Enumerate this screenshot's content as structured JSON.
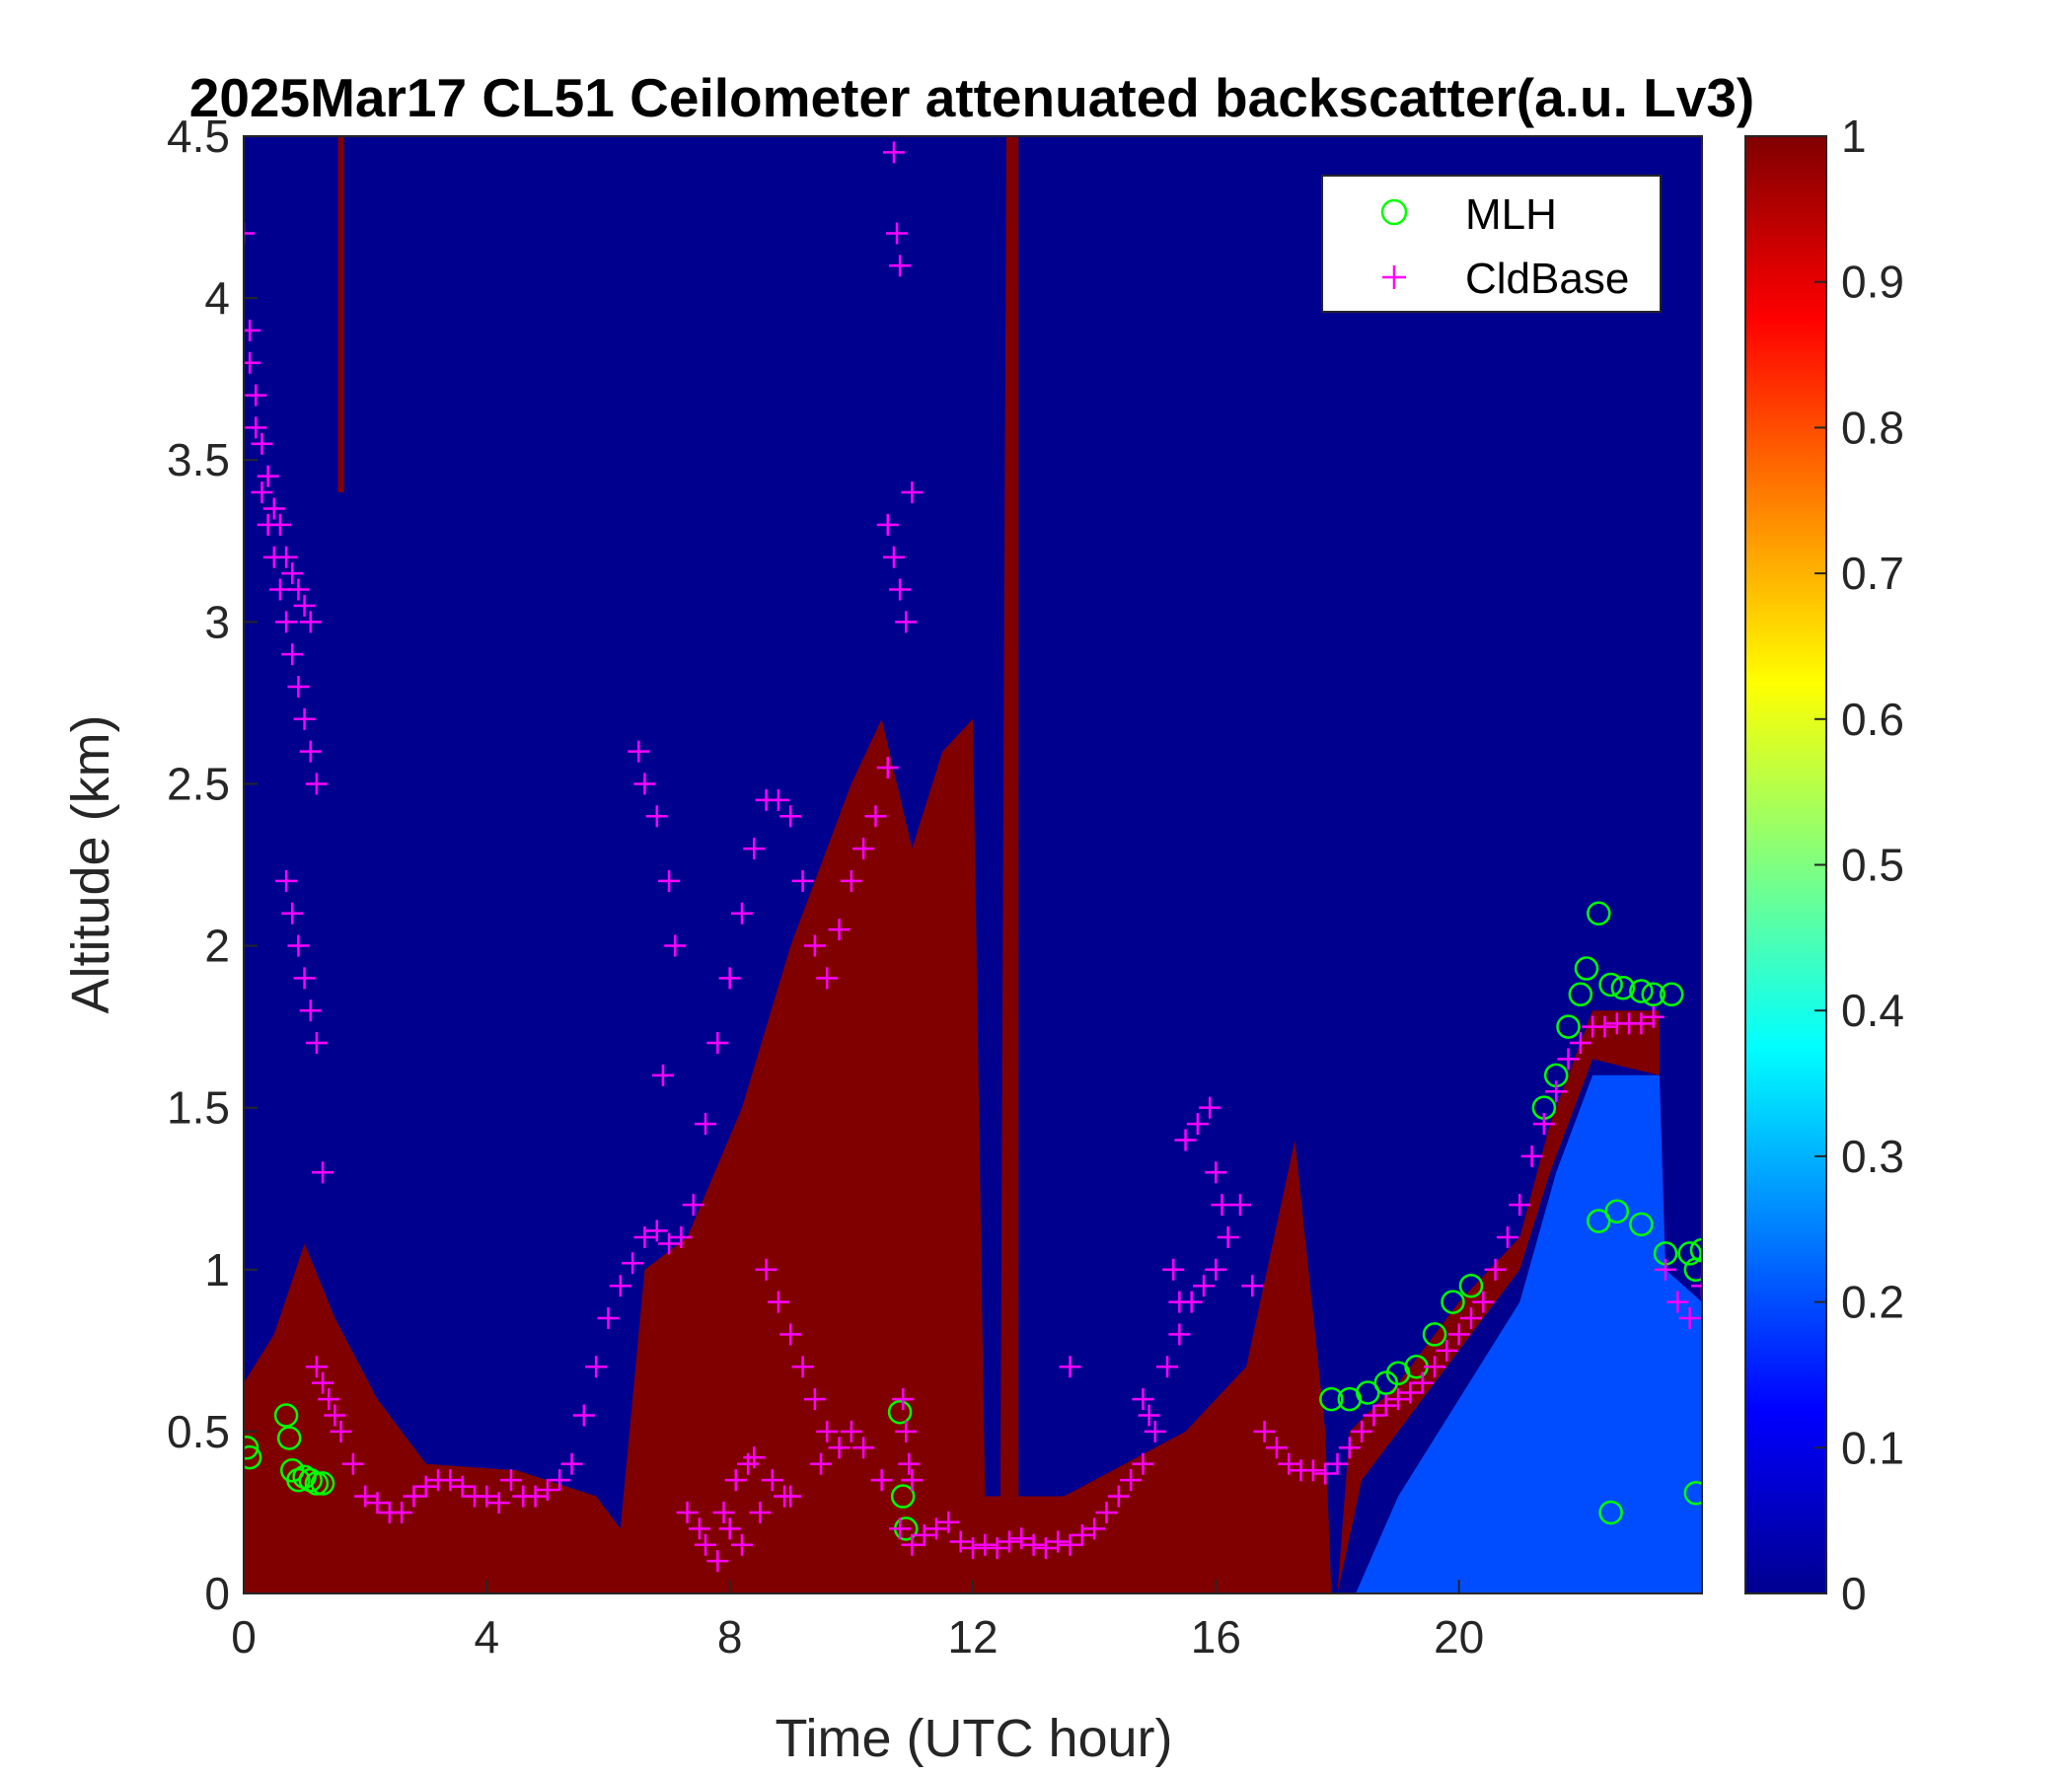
{
  "chart_data": {
    "type": "heatmap",
    "title": "2025Mar17 CL51 Ceilometer attenuated backscatter(a.u. Lv3)",
    "xlabel": "Time (UTC hour)",
    "ylabel": "Altitude (km)",
    "xlim": [
      0,
      24
    ],
    "ylim": [
      0,
      4.5
    ],
    "x_ticks": [
      "0",
      "4",
      "8",
      "12",
      "16",
      "20"
    ],
    "y_ticks": [
      "0",
      "0.5",
      "1",
      "1.5",
      "2",
      "2.5",
      "3",
      "3.5",
      "4",
      "4.5"
    ],
    "colorbar": {
      "colormap": "jet",
      "range": [
        0,
        1
      ],
      "ticks": [
        "0",
        "0.1",
        "0.2",
        "0.3",
        "0.4",
        "0.5",
        "0.6",
        "0.7",
        "0.8",
        "0.9",
        "1"
      ]
    },
    "legend": {
      "location": "top-right",
      "entries": [
        {
          "label": "MLH",
          "marker": "circle",
          "color": "#00ff00"
        },
        {
          "label": "CldBase",
          "marker": "plus",
          "color": "#ff00ff"
        }
      ]
    },
    "colors": {
      "background": "#00008f",
      "saturated": "#800000",
      "mlh_marker": "#00ff00",
      "cloud_marker": "#ff00ff"
    },
    "regions": [
      {
        "kind": "dense_aerosol_layer",
        "value": 1.0,
        "points": [
          [
            0,
            0
          ],
          [
            0,
            0.65
          ],
          [
            0.5,
            0.8
          ],
          [
            1.0,
            1.08
          ],
          [
            1.5,
            0.85
          ],
          [
            2.2,
            0.6
          ],
          [
            3,
            0.4
          ],
          [
            4.5,
            0.38
          ],
          [
            5.8,
            0.3
          ],
          [
            6.2,
            0.2
          ],
          [
            6.6,
            1.0
          ],
          [
            7.3,
            1.1
          ],
          [
            8.2,
            1.5
          ],
          [
            9.0,
            2.0
          ],
          [
            10.0,
            2.5
          ],
          [
            10.5,
            2.7
          ],
          [
            11.0,
            2.3
          ],
          [
            11.5,
            2.6
          ],
          [
            12.0,
            2.7
          ],
          [
            12.2,
            0.3
          ],
          [
            13.5,
            0.3
          ],
          [
            14.5,
            0.4
          ],
          [
            15.5,
            0.5
          ],
          [
            16.5,
            0.7
          ],
          [
            17.3,
            1.4
          ],
          [
            17.8,
            0.5
          ],
          [
            17.9,
            0
          ]
        ]
      },
      {
        "kind": "cloud_streak",
        "value": 1.0,
        "points": [
          [
            12.45,
            0.2
          ],
          [
            12.55,
            4.5
          ],
          [
            12.75,
            4.5
          ],
          [
            12.75,
            0.3
          ]
        ]
      },
      {
        "kind": "cloud_streak",
        "value": 1.0,
        "points": [
          [
            1.55,
            3.4
          ],
          [
            1.55,
            4.5
          ],
          [
            1.65,
            4.5
          ],
          [
            1.65,
            3.4
          ]
        ]
      },
      {
        "kind": "upper_aerosol_ramp",
        "value": 1.0,
        "points": [
          [
            18.2,
            0.5
          ],
          [
            19,
            0.65
          ],
          [
            20,
            0.9
          ],
          [
            21,
            1.1
          ],
          [
            21.5,
            1.45
          ],
          [
            22.2,
            1.8
          ],
          [
            23.3,
            1.8
          ],
          [
            23.3,
            1.6
          ],
          [
            22.2,
            1.65
          ],
          [
            21.5,
            1.3
          ],
          [
            21,
            1.0
          ],
          [
            20,
            0.75
          ],
          [
            19,
            0.5
          ],
          [
            18.4,
            0.35
          ],
          [
            18.0,
            0
          ]
        ]
      },
      {
        "kind": "clean_boundary_layer",
        "value": 0.2,
        "points": [
          [
            18.3,
            0
          ],
          [
            19,
            0.3
          ],
          [
            20,
            0.6
          ],
          [
            21,
            0.9
          ],
          [
            21.6,
            1.3
          ],
          [
            22.2,
            1.6
          ],
          [
            23.3,
            1.6
          ],
          [
            23.4,
            1.0
          ],
          [
            24,
            0.9
          ],
          [
            24,
            0
          ]
        ]
      }
    ],
    "series": [
      {
        "name": "MLH",
        "marker": "circle",
        "x": [
          0.05,
          0.1,
          0.7,
          0.75,
          0.8,
          0.9,
          1.0,
          1.1,
          1.2,
          1.3,
          10.8,
          10.85,
          10.9,
          17.9,
          18.2,
          18.5,
          18.8,
          19.0,
          19.3,
          19.6,
          19.9,
          20.2,
          21.4,
          21.6,
          21.8,
          22.0,
          22.1,
          22.3,
          22.5,
          22.7,
          23.0,
          23.2,
          23.5,
          23.8,
          24.0,
          22.3,
          22.6,
          23.0,
          23.4,
          23.9,
          22.5,
          23.9
        ],
        "y": [
          0.45,
          0.42,
          0.55,
          0.48,
          0.38,
          0.35,
          0.36,
          0.35,
          0.34,
          0.34,
          0.56,
          0.3,
          0.2,
          0.6,
          0.6,
          0.62,
          0.65,
          0.68,
          0.7,
          0.8,
          0.9,
          0.95,
          1.5,
          1.6,
          1.75,
          1.85,
          1.93,
          2.1,
          1.88,
          1.87,
          1.86,
          1.85,
          1.85,
          1.05,
          1.06,
          1.15,
          1.18,
          1.14,
          1.05,
          1.0,
          0.25,
          0.31
        ]
      },
      {
        "name": "CldBase",
        "marker": "plus",
        "x": [
          0.0,
          0.1,
          0.2,
          0.3,
          0.4,
          0.5,
          0.6,
          0.7,
          0.8,
          0.9,
          1.0,
          1.1,
          1.2,
          1.3,
          1.4,
          1.5,
          1.6,
          1.8,
          2.0,
          2.2,
          2.4,
          2.6,
          2.8,
          3.0,
          3.2,
          3.4,
          3.6,
          3.8,
          4.0,
          4.2,
          4.4,
          4.6,
          4.8,
          5.0,
          5.2,
          5.4,
          5.6,
          5.8,
          6.0,
          6.2,
          6.4,
          6.6,
          6.8,
          7.0,
          7.2,
          7.4,
          7.6,
          7.8,
          8.0,
          8.2,
          8.4,
          8.6,
          8.8,
          9.0,
          9.2,
          9.4,
          9.6,
          9.8,
          10.0,
          10.2,
          10.4,
          10.6,
          10.8,
          11.0,
          11.2,
          11.4,
          11.6,
          11.8,
          12.0,
          12.2,
          12.4,
          12.6,
          12.8,
          13.0,
          13.2,
          13.4,
          13.6,
          13.8,
          14.0,
          14.2,
          14.4,
          14.6,
          14.8,
          15.0,
          15.2,
          15.4,
          15.6,
          15.8,
          16.0,
          16.2,
          16.4,
          16.6,
          16.8,
          17.0,
          17.2,
          17.4,
          17.6,
          17.8,
          18.0,
          18.2,
          18.4,
          18.6,
          18.8,
          19.0,
          19.2,
          19.4,
          19.6,
          19.8,
          20.0,
          20.2,
          20.4,
          20.6,
          20.8,
          21.0,
          21.2,
          21.4,
          21.6,
          21.8,
          22.0,
          22.2,
          22.4,
          22.6,
          22.8,
          23.0,
          23.2,
          23.4,
          23.6,
          23.8,
          24.0,
          0.1,
          0.2,
          0.3,
          0.4,
          0.5,
          0.6,
          0.7,
          0.8,
          0.9,
          1.0,
          1.1,
          1.2,
          0.7,
          0.8,
          0.9,
          1.0,
          1.1,
          1.2,
          1.3,
          6.5,
          6.6,
          6.8,
          7.0,
          7.1,
          6.9,
          7.5,
          7.6,
          7.3,
          8.6,
          8.8,
          9.0,
          9.2,
          9.4,
          9.6,
          9.8,
          10.6,
          10.7,
          10.8,
          10.9,
          11.0,
          10.7,
          10.75,
          10.8,
          10.85,
          10.9,
          10.95,
          11.0,
          15.5,
          15.7,
          15.9,
          16.0,
          16.1,
          15.3,
          15.4,
          14.8,
          14.9,
          13.6,
          9.0,
          9.5,
          10.0,
          10.2,
          10.5,
          8.0,
          8.2,
          8.5,
          8.7,
          8.9,
          7.8,
          7.9,
          8.1,
          8.3,
          8.4
        ],
        "y": [
          4.2,
          3.9,
          3.7,
          3.55,
          3.45,
          3.35,
          3.3,
          3.2,
          3.15,
          3.1,
          3.05,
          3.0,
          0.7,
          0.65,
          0.6,
          0.55,
          0.5,
          0.4,
          0.3,
          0.28,
          0.25,
          0.25,
          0.3,
          0.33,
          0.35,
          0.35,
          0.33,
          0.3,
          0.3,
          0.28,
          0.35,
          0.3,
          0.3,
          0.32,
          0.35,
          0.4,
          0.55,
          0.7,
          0.85,
          0.95,
          1.02,
          1.1,
          1.12,
          1.08,
          1.1,
          1.2,
          1.45,
          1.7,
          1.9,
          2.1,
          2.3,
          2.45,
          2.45,
          2.4,
          2.2,
          2.0,
          1.9,
          2.05,
          2.2,
          2.3,
          2.4,
          2.55,
          0.2,
          0.15,
          0.18,
          0.2,
          0.22,
          0.16,
          0.14,
          0.15,
          0.14,
          0.16,
          0.17,
          0.15,
          0.14,
          0.16,
          0.15,
          0.18,
          0.2,
          0.25,
          0.3,
          0.35,
          0.4,
          0.5,
          0.7,
          0.8,
          0.9,
          0.95,
          1.0,
          1.1,
          1.2,
          0.95,
          0.5,
          0.45,
          0.4,
          0.38,
          0.38,
          0.37,
          0.4,
          0.45,
          0.5,
          0.55,
          0.58,
          0.6,
          0.62,
          0.65,
          0.7,
          0.75,
          0.8,
          0.85,
          0.9,
          1.0,
          1.1,
          1.2,
          1.35,
          1.45,
          1.55,
          1.65,
          1.7,
          1.75,
          1.75,
          1.76,
          1.76,
          1.76,
          1.78,
          1.0,
          0.9,
          0.85,
          0.95,
          3.8,
          3.6,
          3.4,
          3.3,
          3.2,
          3.1,
          3.0,
          2.9,
          2.8,
          2.7,
          2.6,
          2.5,
          2.2,
          2.1,
          2.0,
          1.9,
          1.8,
          1.7,
          1.3,
          2.6,
          2.5,
          2.4,
          2.2,
          2.0,
          1.6,
          0.2,
          0.15,
          0.25,
          1.0,
          0.9,
          0.8,
          0.7,
          0.6,
          0.5,
          0.45,
          3.3,
          3.2,
          3.1,
          3.0,
          3.4,
          4.45,
          4.2,
          4.1,
          0.6,
          0.5,
          0.4,
          0.35,
          1.4,
          1.45,
          1.5,
          1.3,
          1.2,
          1.0,
          0.9,
          0.6,
          0.55,
          0.7,
          0.3,
          0.4,
          0.5,
          0.45,
          0.35,
          0.2,
          0.15,
          0.25,
          0.35,
          0.3,
          0.1,
          0.25,
          0.35,
          0.4,
          0.42
        ]
      }
    ]
  }
}
